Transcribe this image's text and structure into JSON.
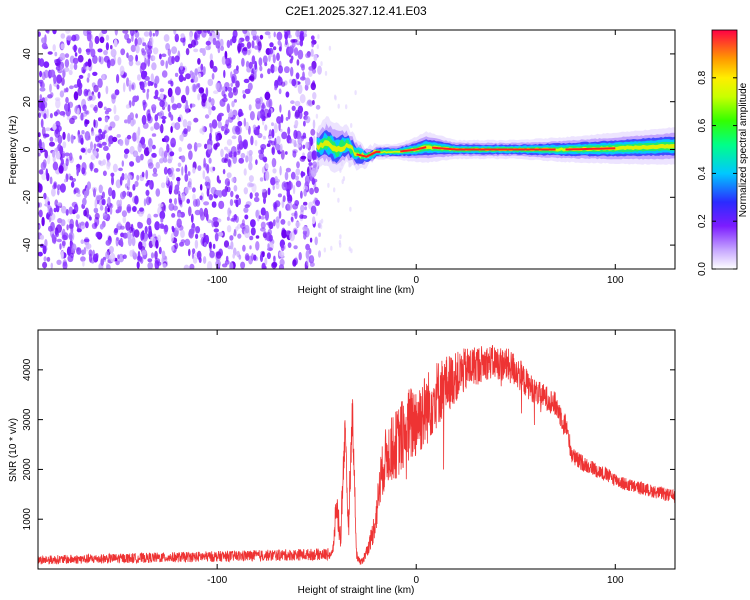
{
  "title": "C2E1.2025.327.12.41.E03",
  "chart_data": [
    {
      "type": "heatmap",
      "name": "spectrogram",
      "xlabel": "Height of straight line (km)",
      "ylabel": "Frequency (Hz)",
      "xlim": [
        -190,
        130
      ],
      "ylim": [
        -50,
        50
      ],
      "x_ticks": [
        -100,
        0,
        100
      ],
      "x_tick_labels": [
        "-100",
        "0",
        "100"
      ],
      "y_ticks": [
        -40,
        -20,
        0,
        20,
        40
      ],
      "y_tick_labels": [
        "-40",
        "-20",
        "0",
        "20",
        "40"
      ],
      "noise_region_x": [
        -190,
        -50
      ],
      "signal_trace": {
        "x": [
          -50,
          -45,
          -40,
          -35,
          -30,
          -25,
          -20,
          -10,
          0,
          5,
          20,
          50,
          75,
          100,
          130
        ],
        "y": [
          1,
          3,
          0,
          2,
          -2,
          -3,
          -1,
          -1,
          0,
          1,
          0,
          0,
          0,
          0.5,
          1.5
        ],
        "half_width": [
          3,
          4,
          4,
          3,
          2.5,
          1.5,
          1.2,
          1.2,
          2,
          2.5,
          1.5,
          1.5,
          2,
          2.5,
          3
        ]
      },
      "colorbar": {
        "label": "Normalized spectral amplitude",
        "range": [
          0,
          1
        ],
        "ticks": [
          0.0,
          0.2,
          0.4,
          0.6,
          0.8
        ],
        "tick_labels": [
          "0.0",
          "0.2",
          "0.4",
          "0.6",
          "0.8"
        ]
      }
    },
    {
      "type": "line",
      "name": "snr",
      "xlabel": "Height of straight line (km)",
      "ylabel": "SNR (10 * v/v)",
      "xlim": [
        -190,
        130
      ],
      "ylim": [
        0,
        4800
      ],
      "x_ticks": [
        -100,
        0,
        100
      ],
      "x_tick_labels": [
        "-100",
        "0",
        "100"
      ],
      "y_ticks": [
        1000,
        2000,
        3000,
        4000
      ],
      "y_tick_labels": [
        "1000",
        "2000",
        "3000",
        "4000"
      ],
      "color": "#ee3333",
      "envelope": {
        "x": [
          -190,
          -42,
          -40,
          -38,
          -36,
          -34,
          -32,
          -30,
          -28,
          -26,
          -24,
          -22,
          -20,
          -18,
          -15,
          -10,
          -5,
          0,
          5,
          10,
          15,
          20,
          25,
          30,
          35,
          40,
          45,
          50,
          55,
          60,
          65,
          70,
          75,
          78,
          80,
          85,
          90,
          95,
          100,
          105,
          110,
          115,
          120,
          125,
          130
        ],
        "y": [
          180,
          300,
          1300,
          600,
          2700,
          900,
          3200,
          300,
          120,
          250,
          450,
          700,
          1100,
          1800,
          2300,
          2500,
          2800,
          3000,
          3200,
          3500,
          3700,
          3850,
          4000,
          4100,
          4150,
          4150,
          4100,
          4000,
          3750,
          3550,
          3450,
          3300,
          2900,
          2350,
          2200,
          2100,
          2000,
          1900,
          1800,
          1700,
          1650,
          1600,
          1550,
          1500,
          1450
        ],
        "noise": [
          90,
          120,
          400,
          250,
          600,
          350,
          500,
          120,
          60,
          100,
          150,
          250,
          350,
          500,
          600,
          700,
          800,
          800,
          750,
          700,
          600,
          500,
          450,
          400,
          350,
          350,
          350,
          350,
          300,
          250,
          250,
          250,
          250,
          200,
          180,
          160,
          150,
          150,
          140,
          140,
          130,
          130,
          130,
          130,
          130
        ]
      }
    }
  ]
}
